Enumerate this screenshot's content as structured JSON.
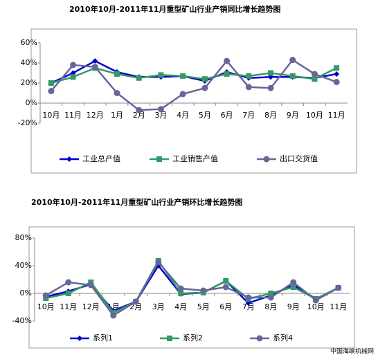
{
  "chart_data": [
    {
      "type": "line",
      "title": "2010年10月-2011年11月重型矿山行业产销同比增长趋势图",
      "categories": [
        "10月",
        "11月",
        "12月",
        "1月",
        "2月",
        "3月",
        "4月",
        "5月",
        "6月",
        "7月",
        "8月",
        "9月",
        "10月",
        "11月"
      ],
      "series": [
        {
          "name": "工业总产值",
          "color": "#0000cc",
          "marker": "diamond",
          "values": [
            20,
            30,
            42,
            31,
            26,
            26,
            27,
            22,
            31,
            25,
            26,
            26,
            25,
            29
          ]
        },
        {
          "name": "工业销售产值",
          "color": "#339966",
          "marker": "square",
          "values": [
            20,
            26,
            35,
            29,
            25,
            28,
            27,
            24,
            29,
            27,
            30,
            27,
            24,
            35
          ]
        },
        {
          "name": "出口交货值",
          "color": "#666699",
          "marker": "circle",
          "values": [
            12,
            38,
            36,
            10,
            -7,
            -6,
            9,
            15,
            42,
            16,
            15,
            43,
            29,
            21
          ]
        }
      ],
      "ylim": [
        -20,
        60
      ],
      "yticks": [
        {
          "value": -20,
          "label": "-20%"
        },
        {
          "value": 0,
          "label": "0%"
        },
        {
          "value": 20,
          "label": "20%"
        },
        {
          "value": 40,
          "label": "40%"
        },
        {
          "value": 60,
          "label": "60%"
        }
      ],
      "grid": false,
      "legend": "bottom"
    },
    {
      "type": "line",
      "title": "2010年10月-2011年11月重型矿山行业产销环比增长趋势图",
      "categories": [
        "10月",
        "11月",
        "12月",
        "1月",
        "2月",
        "3月",
        "4月",
        "5月",
        "6月",
        "7月",
        "8月",
        "9月",
        "10月",
        "11月"
      ],
      "series": [
        {
          "name": "系列1",
          "color": "#0000cc",
          "marker": "diamond",
          "values": [
            -5,
            3,
            13,
            -25,
            -12,
            40,
            -1,
            1,
            18,
            -14,
            -3,
            12,
            -8,
            8
          ]
        },
        {
          "name": "系列2",
          "color": "#339966",
          "marker": "square",
          "values": [
            -7,
            0,
            16,
            -28,
            -12,
            47,
            0,
            1,
            18,
            -8,
            0,
            9,
            -8,
            8
          ]
        },
        {
          "name": "系列4",
          "color": "#666699",
          "marker": "circle",
          "values": [
            -3,
            16,
            12,
            -32,
            -12,
            45,
            7,
            4,
            9,
            -6,
            -6,
            16,
            -10,
            8
          ]
        }
      ],
      "ylim": [
        -40,
        80
      ],
      "yticks": [
        {
          "value": -40,
          "label": "-40%"
        },
        {
          "value": 0,
          "label": "0%"
        },
        {
          "value": 40,
          "label": "40%"
        },
        {
          "value": 80,
          "label": "80%"
        }
      ],
      "grid": false,
      "legend": "bottom"
    }
  ],
  "footer": "中国海峡机械网"
}
